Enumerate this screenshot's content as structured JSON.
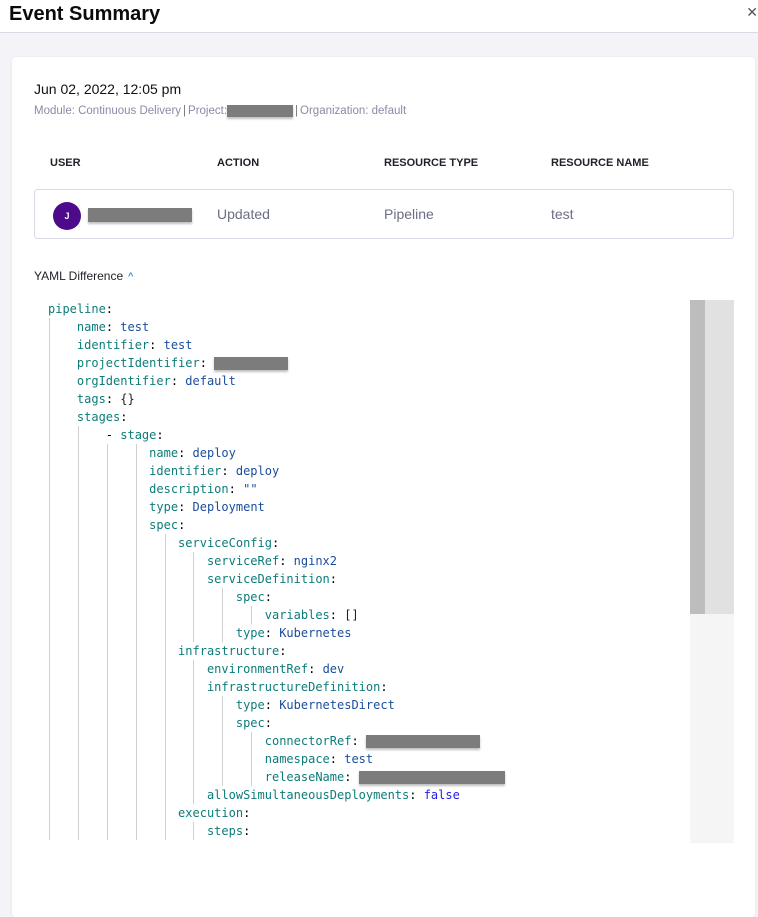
{
  "header": {
    "title": "Event Summary",
    "close_icon": "close-icon"
  },
  "event": {
    "date": "Jun 02, 2022, 12:05 pm",
    "module": "Module: Continuous Delivery",
    "project_label": "Project:",
    "organization": "Organization: default"
  },
  "table": {
    "headers": [
      "USER",
      "ACTION",
      "RESOURCE TYPE",
      "RESOURCE NAME"
    ],
    "row": {
      "avatar_initial": "J",
      "action": "Updated",
      "resource_type": "Pipeline",
      "resource_name": "test"
    }
  },
  "yaml": {
    "label": "YAML Difference",
    "toggle_icon": "chevron-up-icon",
    "lines": [
      {
        "indent": 0,
        "key": "pipeline",
        "value": ""
      },
      {
        "indent": 4,
        "key": "name",
        "value": "test"
      },
      {
        "indent": 4,
        "key": "identifier",
        "value": "test"
      },
      {
        "indent": 4,
        "key": "projectIdentifier",
        "value": "",
        "redacted": true,
        "rw": 74
      },
      {
        "indent": 4,
        "key": "orgIdentifier",
        "value": "default"
      },
      {
        "indent": 4,
        "key": "tags",
        "value": "{}",
        "plain": true
      },
      {
        "indent": 4,
        "key": "stages",
        "value": ""
      },
      {
        "indent": 8,
        "dash": true,
        "key": "stage",
        "value": ""
      },
      {
        "indent": 14,
        "key": "name",
        "value": "deploy"
      },
      {
        "indent": 14,
        "key": "identifier",
        "value": "deploy"
      },
      {
        "indent": 14,
        "key": "description",
        "value": "\"\""
      },
      {
        "indent": 14,
        "key": "type",
        "value": "Deployment"
      },
      {
        "indent": 14,
        "key": "spec",
        "value": ""
      },
      {
        "indent": 18,
        "key": "serviceConfig",
        "value": ""
      },
      {
        "indent": 22,
        "key": "serviceRef",
        "value": "nginx2"
      },
      {
        "indent": 22,
        "key": "serviceDefinition",
        "value": ""
      },
      {
        "indent": 26,
        "key": "spec",
        "value": ""
      },
      {
        "indent": 30,
        "key": "variables",
        "value": "[]",
        "plain": true
      },
      {
        "indent": 26,
        "key": "type",
        "value": "Kubernetes"
      },
      {
        "indent": 18,
        "key": "infrastructure",
        "value": ""
      },
      {
        "indent": 22,
        "key": "environmentRef",
        "value": "dev"
      },
      {
        "indent": 22,
        "key": "infrastructureDefinition",
        "value": ""
      },
      {
        "indent": 26,
        "key": "type",
        "value": "KubernetesDirect"
      },
      {
        "indent": 26,
        "key": "spec",
        "value": ""
      },
      {
        "indent": 30,
        "key": "connectorRef",
        "value": "",
        "redacted": true,
        "rw": 114
      },
      {
        "indent": 30,
        "key": "namespace",
        "value": "test"
      },
      {
        "indent": 30,
        "key": "releaseName",
        "value": "",
        "redacted": true,
        "rw": 146
      },
      {
        "indent": 22,
        "key": "allowSimultaneousDeployments",
        "value": "false",
        "bool": true
      },
      {
        "indent": 18,
        "key": "execution",
        "value": ""
      },
      {
        "indent": 22,
        "key": "steps",
        "value": ""
      }
    ]
  }
}
